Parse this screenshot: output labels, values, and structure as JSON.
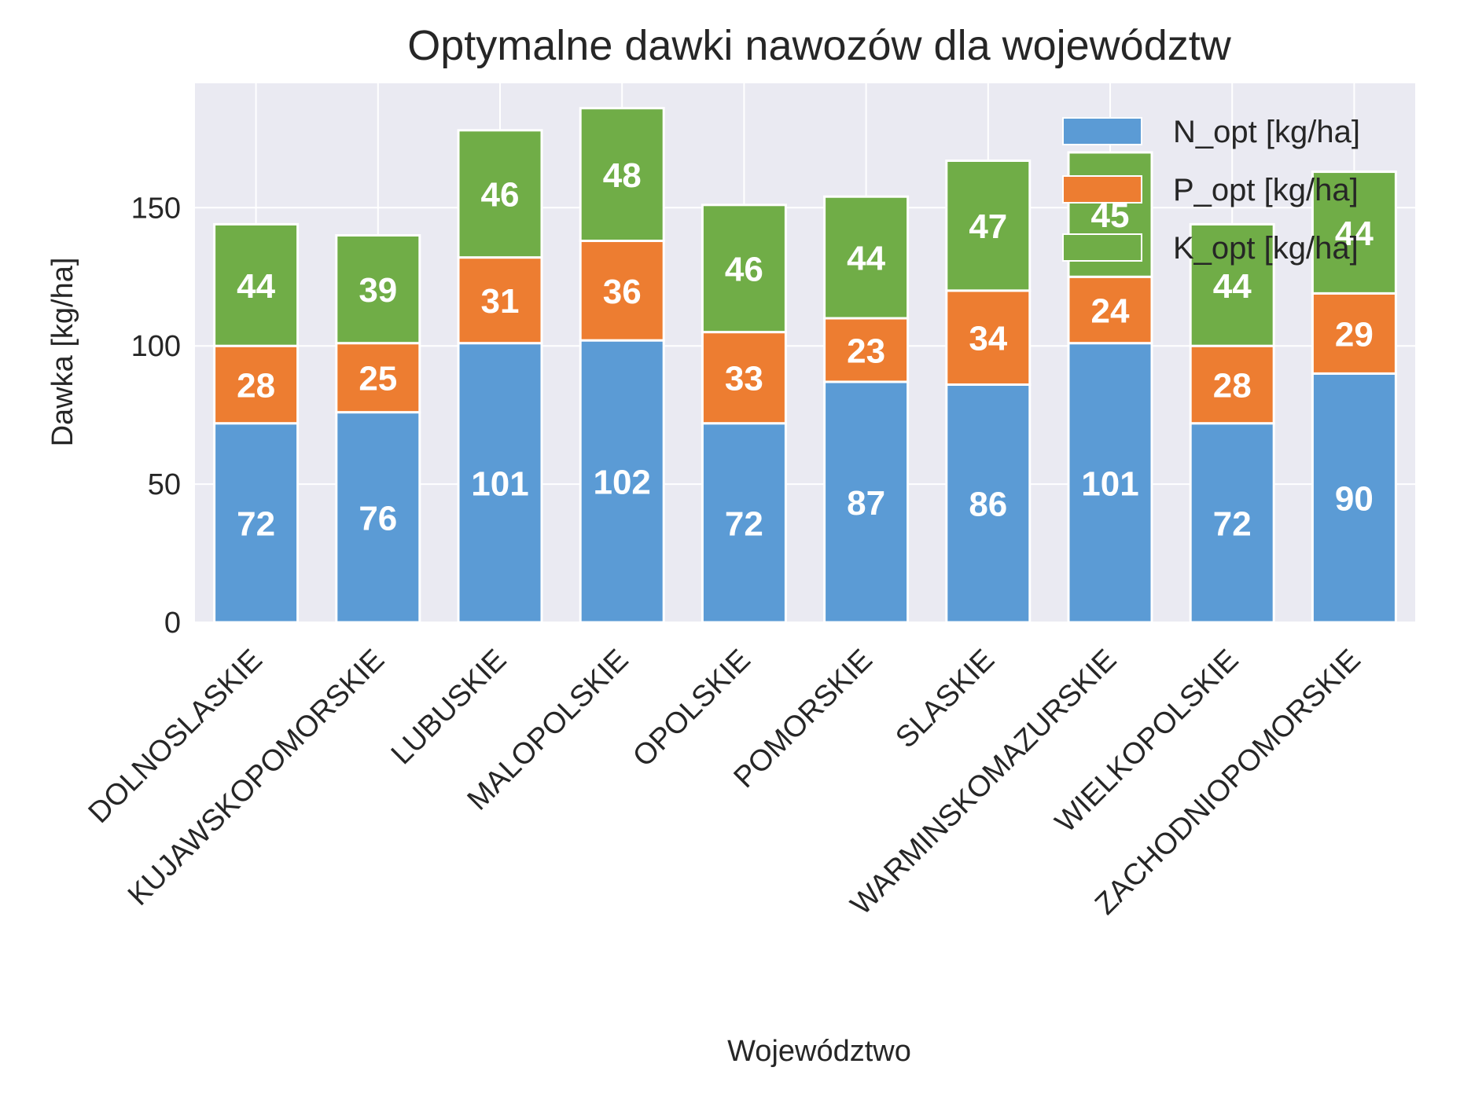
{
  "chart_data": {
    "type": "bar",
    "stacked": true,
    "title": "Optymalne dawki nawozów dla województw",
    "xlabel": "Województwo",
    "ylabel": "Dawka [kg/ha]",
    "ylim": [
      0,
      195
    ],
    "yticks": [
      "0",
      "50",
      "100",
      "150"
    ],
    "grid": true,
    "legend_position": "top-right",
    "background_color": "#eaeaf2",
    "grid_color": "#ffffff",
    "categories": [
      "DOLNOSLASKIE",
      "KUJAWSKOPOMORSKIE",
      "LUBUSKIE",
      "MALOPOLSKIE",
      "OPOLSKIE",
      "POMORSKIE",
      "SLASKIE",
      "WARMINSKOMAZURSKIE",
      "WIELKOPOLSKIE",
      "ZACHODNIOPOMORSKIE"
    ],
    "series": [
      {
        "name": "N_opt [kg/ha]",
        "color": "#5b9bd5",
        "values": [
          72,
          76,
          101,
          102,
          72,
          87,
          86,
          101,
          72,
          90
        ],
        "labels": [
          "72",
          "76",
          "101",
          "102",
          "72",
          "87",
          "86",
          "101",
          "72",
          "90"
        ]
      },
      {
        "name": "P_opt [kg/ha]",
        "color": "#ed7d31",
        "values": [
          28,
          25,
          31,
          36,
          33,
          23,
          34,
          24,
          28,
          29
        ],
        "labels": [
          "28",
          "25",
          "31",
          "36",
          "33",
          "23",
          "34",
          "24",
          "28",
          "29"
        ]
      },
      {
        "name": "K_opt [kg/ha]",
        "color": "#70ad47",
        "values": [
          44,
          39,
          46,
          48,
          46,
          44,
          47,
          45,
          44,
          44
        ],
        "labels": [
          "44",
          "39",
          "46",
          "48",
          "46",
          "44",
          "47",
          "45",
          "44",
          "44"
        ]
      }
    ]
  }
}
